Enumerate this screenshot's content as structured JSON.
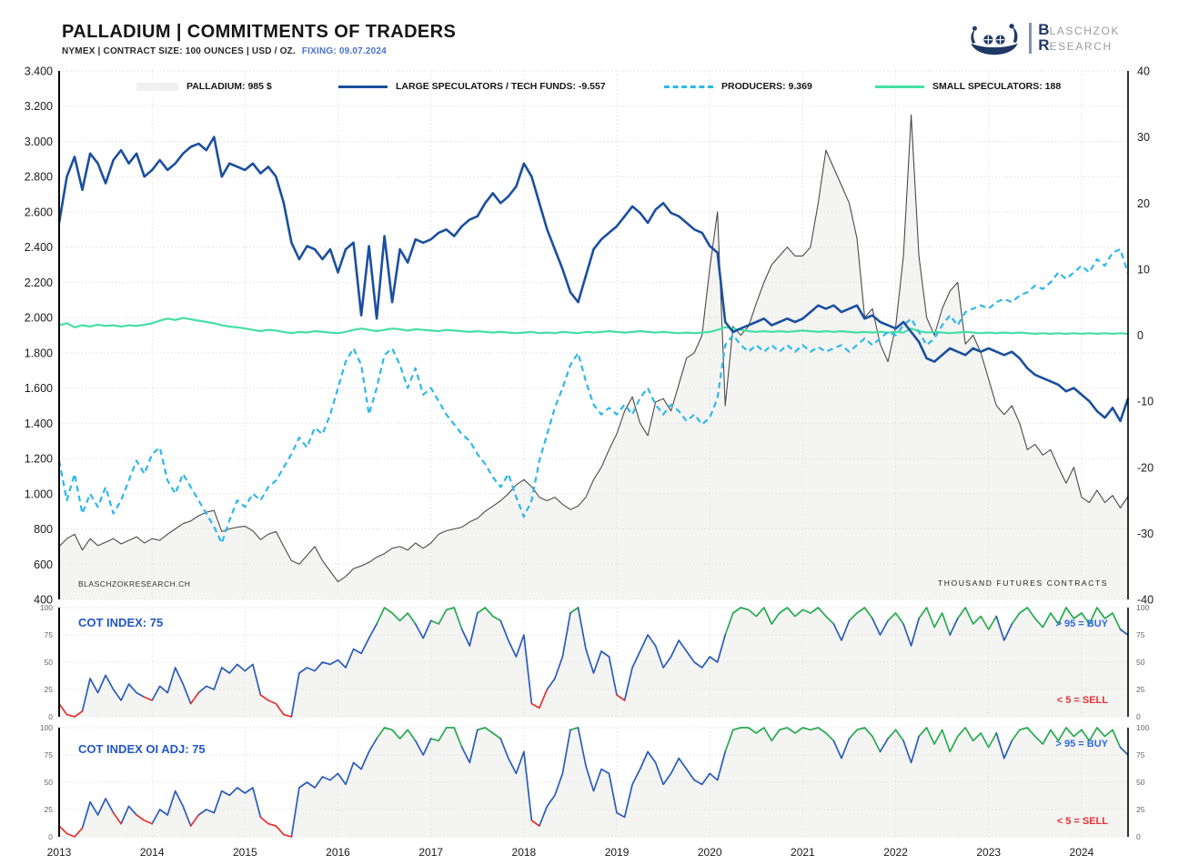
{
  "page": {
    "title": "PALLADIUM | COMMITMENTS OF TRADERS",
    "subtitle": "NYMEX | CONTRACT SIZE: 100 OUNCES | USD / OZ.",
    "fixing": "FIXING: 09.07.2024",
    "watermark": "BLASCHZOKRESEARCH.CH",
    "unit_note": "THOUSAND FUTURES CONTRACTS",
    "brand": {
      "word1_initial": "B",
      "word1_rest": "LASCHZOK",
      "word2_initial": "R",
      "word2_rest": "ESEARCH"
    }
  },
  "colors": {
    "price": "#4a4a4a",
    "price_fill": "#f4f4f3",
    "large_specs": "#1b4f9e",
    "producers": "#2eb7ea",
    "small_specs": "#45dfa4",
    "cot_blue": "#2a5cb8",
    "cot_green": "#27aa4e",
    "cot_red": "#e63132",
    "grid": "#e0e0e0",
    "axis_text": "#1a1a1a",
    "sub_axis_text": "#666666",
    "fixing_blue": "#4a71d0",
    "brand_navy": "#1f3864",
    "brand_gray": "#9b9b9b"
  },
  "chart_data": [
    {
      "type": "line",
      "title": "PALLADIUM | COMMITMENTS OF TRADERS (main panel)",
      "x_start_year": 2013.0,
      "x_step_years": 0.0833333,
      "x_end_year": 2024.5,
      "x_ticks": [
        2013,
        2014,
        2015,
        2016,
        2017,
        2018,
        2019,
        2020,
        2021,
        2022,
        2023,
        2024
      ],
      "left_axis": {
        "ticks": [
          "3.400",
          "3.200",
          "3.000",
          "2.800",
          "2.600",
          "2.400",
          "2.200",
          "2.000",
          "1.800",
          "1.600",
          "1.400",
          "1.200",
          "1.000",
          "800",
          "600",
          "400"
        ],
        "tick_values": [
          3400,
          3200,
          3000,
          2800,
          2600,
          2400,
          2200,
          2000,
          1800,
          1600,
          1400,
          1200,
          1000,
          800,
          600,
          400
        ],
        "min": 400,
        "max": 3400,
        "unit": "USD / OZ."
      },
      "right_axis": {
        "ticks": [
          "40",
          "30",
          "20",
          "10",
          "0",
          "-10",
          "-20",
          "-30",
          "-40"
        ],
        "tick_values": [
          40,
          30,
          20,
          10,
          0,
          -10,
          -20,
          -30,
          -40
        ],
        "min": -40,
        "max": 40,
        "unit": "THOUSAND FUTURES CONTRACTS"
      },
      "series": [
        {
          "name": "PALLADIUM",
          "legend": "PALLADIUM: 985 $",
          "axis": "left",
          "style": "area",
          "values": [
            700,
            745,
            770,
            680,
            745,
            705,
            725,
            745,
            715,
            735,
            755,
            720,
            745,
            735,
            770,
            800,
            830,
            845,
            875,
            895,
            905,
            785,
            800,
            810,
            815,
            790,
            740,
            770,
            785,
            700,
            620,
            600,
            650,
            700,
            620,
            560,
            500,
            530,
            575,
            590,
            610,
            640,
            660,
            690,
            700,
            680,
            720,
            690,
            720,
            770,
            790,
            800,
            810,
            840,
            860,
            900,
            930,
            960,
            1000,
            1050,
            1080,
            1040,
            980,
            960,
            980,
            940,
            910,
            930,
            980,
            1080,
            1150,
            1250,
            1340,
            1470,
            1550,
            1400,
            1330,
            1520,
            1540,
            1470,
            1620,
            1770,
            1800,
            1900,
            2280,
            2600,
            1500,
            1950,
            1900,
            1950,
            2080,
            2200,
            2300,
            2350,
            2400,
            2350,
            2350,
            2400,
            2650,
            2950,
            2850,
            2750,
            2650,
            2450,
            2000,
            2050,
            1850,
            1750,
            1950,
            2350,
            3150,
            2350,
            2000,
            1900,
            2050,
            2150,
            2200,
            1850,
            1900,
            1800,
            1650,
            1500,
            1450,
            1500,
            1400,
            1250,
            1280,
            1220,
            1250,
            1150,
            1060,
            1150,
            980,
            950,
            1020,
            950,
            990,
            920,
            985
          ]
        },
        {
          "name": "LARGE SPECULATORS / TECH FUNDS",
          "legend": "LARGE SPECULATORS / TECH FUNDS: -9.557",
          "axis": "right",
          "style": "solid",
          "values": [
            17,
            24,
            27,
            22,
            27.5,
            26,
            23,
            26.5,
            28,
            26,
            27.5,
            24,
            25,
            26.5,
            25,
            26,
            27.5,
            28.5,
            29,
            28,
            30,
            24,
            26,
            25.5,
            25,
            26,
            24.5,
            25.5,
            24,
            20,
            14,
            11.5,
            13.5,
            13,
            11.5,
            13,
            9.5,
            13,
            14,
            3,
            13.5,
            2.5,
            15,
            5,
            13,
            11,
            14.5,
            14,
            14.5,
            15.5,
            16,
            15,
            16.5,
            17.5,
            18,
            20,
            21.5,
            20,
            21,
            22.5,
            26,
            24,
            20,
            16,
            13,
            10,
            6.5,
            5,
            9,
            13,
            14.5,
            15.5,
            16.5,
            18,
            19.5,
            18.5,
            17,
            19,
            20,
            18.5,
            18,
            17,
            16,
            15.5,
            13.5,
            12.5,
            2,
            0.5,
            1,
            1.5,
            2,
            2.5,
            1.5,
            2,
            2.5,
            2,
            2.5,
            3.5,
            4.5,
            4,
            4.5,
            3.5,
            4,
            4.5,
            2.5,
            3,
            2,
            1.5,
            1,
            2,
            0.5,
            -1,
            -3.5,
            -4,
            -3,
            -2,
            -2.5,
            -3,
            -2,
            -2.5,
            -2,
            -2.5,
            -3,
            -2.5,
            -3.5,
            -5,
            -6,
            -6.5,
            -7,
            -7.5,
            -8.5,
            -8,
            -9,
            -10,
            -11.5,
            -12.5,
            -11,
            -13,
            -9.557
          ]
        },
        {
          "name": "PRODUCERS",
          "legend": "PRODUCERS: 9.369",
          "axis": "right",
          "style": "dashed",
          "values": [
            -19,
            -25,
            -21,
            -27,
            -24,
            -26,
            -23,
            -27,
            -25,
            -22,
            -19,
            -21,
            -18,
            -17,
            -22,
            -24,
            -21,
            -23,
            -25,
            -27,
            -29,
            -31.5,
            -28,
            -25,
            -26,
            -24,
            -25,
            -23,
            -22,
            -20,
            -18,
            -15.5,
            -17,
            -14,
            -15,
            -12,
            -8,
            -4,
            -2,
            -4.5,
            -12,
            -8,
            -3,
            -2,
            -4.5,
            -8,
            -5,
            -9,
            -8,
            -10,
            -12,
            -13.5,
            -15,
            -16,
            -18,
            -19.5,
            -21.5,
            -23,
            -21,
            -24.5,
            -27.5,
            -25,
            -19,
            -15,
            -11,
            -8,
            -4.5,
            -2.7,
            -7,
            -10.5,
            -12,
            -11,
            -12,
            -10.5,
            -12,
            -9.5,
            -8,
            -10.5,
            -12,
            -10.5,
            -11.5,
            -13,
            -12,
            -13.5,
            -12.5,
            -9.5,
            -1.5,
            0,
            -1.5,
            -2.5,
            -1.5,
            -2.5,
            -1.5,
            -2.5,
            -1.5,
            -2.5,
            -1.5,
            -2.5,
            -1.8,
            -2.5,
            -2,
            -1.5,
            -2.5,
            -1.5,
            -0.5,
            -1.5,
            -0.5,
            0.5,
            0,
            1.5,
            2.5,
            0.5,
            -1.5,
            -0.5,
            1.5,
            3,
            1.5,
            3.5,
            4,
            4.5,
            4,
            5,
            5.5,
            5,
            6,
            6.5,
            7.5,
            7,
            8,
            9.5,
            8.5,
            9.5,
            10.5,
            9.5,
            11.5,
            10.5,
            12.5,
            13,
            9.369
          ]
        },
        {
          "name": "SMALL SPECULATORS",
          "legend": "SMALL SPECULATORS: 188",
          "axis": "right",
          "style": "solid",
          "values": [
            1.5,
            1.8,
            1.2,
            1.5,
            1.3,
            1.6,
            1.4,
            1.5,
            1.3,
            1.5,
            1.4,
            1.6,
            1.8,
            2.2,
            2.5,
            2.3,
            2.6,
            2.4,
            2.2,
            2.0,
            1.8,
            1.5,
            1.3,
            1.2,
            1.0,
            0.8,
            0.6,
            0.8,
            0.7,
            0.5,
            0.3,
            0.5,
            0.4,
            0.6,
            0.5,
            0.4,
            0.3,
            0.5,
            0.8,
            1.0,
            0.8,
            0.6,
            0.8,
            1.0,
            0.9,
            0.7,
            0.9,
            0.8,
            0.7,
            0.6,
            0.8,
            0.7,
            0.6,
            0.5,
            0.6,
            0.5,
            0.4,
            0.5,
            0.4,
            0.3,
            0.4,
            0.5,
            0.3,
            0.4,
            0.3,
            0.5,
            0.4,
            0.3,
            0.5,
            0.4,
            0.5,
            0.6,
            0.5,
            0.4,
            0.5,
            0.6,
            0.5,
            0.4,
            0.5,
            0.4,
            0.3,
            0.4,
            0.3,
            0.4,
            0.5,
            0.8,
            1.2,
            1.0,
            0.8,
            0.6,
            0.5,
            0.6,
            0.5,
            0.6,
            0.5,
            0.6,
            0.7,
            0.6,
            0.5,
            0.6,
            0.5,
            0.6,
            0.5,
            0.4,
            0.5,
            0.4,
            0.5,
            0.4,
            0.5,
            0.4,
            1.0,
            0.6,
            0.4,
            0.5,
            0.4,
            0.3,
            0.4,
            0.5,
            0.4,
            0.3,
            0.4,
            0.3,
            0.4,
            0.3,
            0.4,
            0.3,
            0.2,
            0.3,
            0.2,
            0.3,
            0.2,
            0.3,
            0.2,
            0.3,
            0.2,
            0.3,
            0.2,
            0.3,
            0.188
          ]
        }
      ],
      "footnote_left": "BLASCHZOKRESEARCH.CH",
      "footnote_right": "THOUSAND FUTURES CONTRACTS"
    },
    {
      "type": "line",
      "title": "COT INDEX: 75",
      "ylim": [
        0,
        100
      ],
      "y_ticks": [
        "100",
        "75",
        "50",
        "25",
        "0"
      ],
      "y_tick_values": [
        100,
        75,
        50,
        25,
        0
      ],
      "annotations": {
        "buy": "> 95 = BUY",
        "sell": "< 5 = SELL"
      },
      "color_rules": {
        "green_at_or_above": 85,
        "red_at_or_below": 18
      },
      "values": [
        12,
        2,
        0,
        5,
        35,
        22,
        38,
        25,
        15,
        30,
        22,
        18,
        15,
        28,
        22,
        45,
        30,
        12,
        22,
        28,
        25,
        45,
        40,
        48,
        42,
        48,
        20,
        15,
        12,
        2,
        0,
        40,
        45,
        42,
        50,
        48,
        52,
        45,
        62,
        58,
        72,
        85,
        100,
        95,
        88,
        95,
        85,
        72,
        88,
        85,
        98,
        100,
        80,
        65,
        95,
        100,
        92,
        88,
        70,
        55,
        75,
        12,
        8,
        25,
        35,
        55,
        95,
        100,
        62,
        40,
        60,
        55,
        20,
        15,
        45,
        60,
        75,
        65,
        45,
        55,
        70,
        60,
        50,
        45,
        55,
        50,
        75,
        95,
        100,
        98,
        92,
        100,
        85,
        95,
        100,
        92,
        98,
        95,
        100,
        92,
        85,
        70,
        88,
        95,
        100,
        90,
        75,
        88,
        95,
        85,
        65,
        90,
        100,
        82,
        95,
        75,
        90,
        100,
        85,
        92,
        80,
        92,
        70,
        85,
        95,
        100,
        90,
        82,
        95,
        85,
        100,
        90,
        95,
        85,
        100,
        90,
        95,
        80,
        75
      ]
    },
    {
      "type": "line",
      "title": "COT INDEX OI ADJ: 75",
      "ylim": [
        0,
        100
      ],
      "y_ticks": [
        "100",
        "75",
        "50",
        "25",
        "0"
      ],
      "y_tick_values": [
        100,
        75,
        50,
        25,
        0
      ],
      "annotations": {
        "buy": "> 95 = BUY",
        "sell": "< 5 = SELL"
      },
      "color_rules": {
        "green_at_or_above": 85,
        "red_at_or_below": 18
      },
      "values": [
        10,
        3,
        0,
        8,
        32,
        20,
        35,
        22,
        12,
        28,
        20,
        15,
        12,
        25,
        20,
        42,
        28,
        10,
        20,
        25,
        22,
        42,
        38,
        45,
        40,
        45,
        18,
        12,
        10,
        2,
        0,
        45,
        50,
        45,
        55,
        52,
        58,
        48,
        68,
        62,
        78,
        90,
        100,
        98,
        90,
        98,
        88,
        75,
        90,
        88,
        100,
        100,
        82,
        68,
        98,
        100,
        95,
        90,
        72,
        58,
        78,
        15,
        10,
        28,
        38,
        58,
        98,
        100,
        65,
        42,
        62,
        58,
        22,
        18,
        48,
        62,
        78,
        68,
        48,
        58,
        72,
        62,
        52,
        48,
        58,
        52,
        78,
        98,
        100,
        100,
        95,
        100,
        88,
        98,
        100,
        95,
        100,
        98,
        100,
        95,
        88,
        72,
        90,
        98,
        100,
        92,
        78,
        90,
        98,
        88,
        68,
        92,
        100,
        85,
        98,
        78,
        92,
        100,
        88,
        95,
        82,
        95,
        72,
        88,
        98,
        100,
        92,
        85,
        98,
        88,
        100,
        92,
        98,
        88,
        100,
        92,
        98,
        82,
        75
      ]
    }
  ]
}
